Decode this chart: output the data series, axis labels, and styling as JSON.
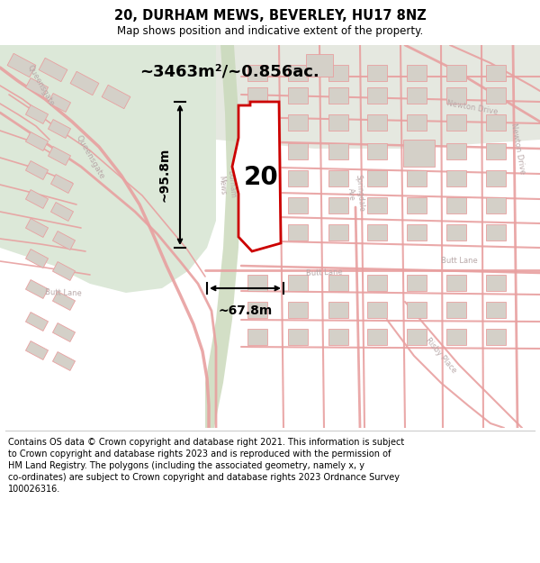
{
  "title": "20, DURHAM MEWS, BEVERLEY, HU17 8NZ",
  "subtitle": "Map shows position and indicative extent of the property.",
  "title_fontsize": 10.5,
  "subtitle_fontsize": 8.5,
  "footer_text": "Contains OS data © Crown copyright and database right 2021. This information is subject to Crown copyright and database rights 2023 and is reproduced with the permission of HM Land Registry. The polygons (including the associated geometry, namely x, y co-ordinates) are subject to Crown copyright and database rights 2023 Ordnance Survey 100026316.",
  "footer_fontsize": 7.0,
  "area_label": "~3463m²/~0.856ac.",
  "area_fontsize": 13,
  "number_label": "20",
  "number_fontsize": 20,
  "width_label": "~67.8m",
  "height_label": "~95.8m",
  "dim_fontsize": 10,
  "property_color": "#cc0000",
  "road_color": "#e8a0a0",
  "green_strip_color": "#ccd8c0",
  "bg_main": "#f2f0ec",
  "bg_top_left": "#e8ece4",
  "arrow_color": "#000000"
}
